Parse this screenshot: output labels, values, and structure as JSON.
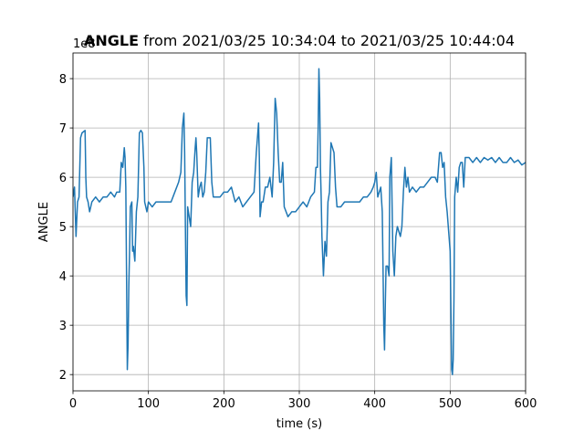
{
  "chart_data": {
    "type": "line",
    "title_parts": [
      "ANGLE",
      " from 2021/03/25 10:34:04 to 2021/03/25 10:44:04"
    ],
    "y_offset_label": "1e8",
    "xlabel": "time (s)",
    "ylabel": "ANGLE",
    "color": "#1f77b4",
    "grid": true,
    "xlim": [
      0,
      600
    ],
    "ylim": [
      1.67,
      8.52
    ],
    "xticks": [
      0,
      100,
      200,
      300,
      400,
      500,
      600
    ],
    "yticks": [
      2,
      3,
      4,
      5,
      6,
      7,
      8
    ],
    "x": [
      0,
      2,
      4,
      6,
      8,
      10,
      12,
      16,
      17,
      18,
      20,
      22,
      25,
      30,
      35,
      40,
      45,
      50,
      55,
      58,
      62,
      64,
      66,
      68,
      69,
      70,
      71,
      72,
      73,
      74,
      75,
      76,
      78,
      79,
      80,
      82,
      84,
      86,
      88,
      90,
      92,
      94,
      95,
      98,
      100,
      105,
      110,
      115,
      120,
      125,
      130,
      135,
      140,
      143,
      145,
      147,
      148,
      149,
      150,
      151,
      152,
      154,
      156,
      158,
      160,
      162,
      163,
      164,
      166,
      168,
      170,
      172,
      174,
      176,
      178,
      180,
      182,
      184,
      186,
      190,
      195,
      200,
      205,
      210,
      215,
      220,
      225,
      230,
      235,
      240,
      243,
      246,
      247,
      248,
      250,
      252,
      255,
      258,
      261,
      264,
      266,
      268,
      270,
      272,
      274,
      276,
      278,
      280,
      285,
      290,
      295,
      300,
      305,
      310,
      315,
      320,
      322,
      324,
      325,
      326,
      327,
      328,
      329,
      330,
      332,
      334,
      336,
      338,
      340,
      342,
      344,
      346,
      348,
      350,
      355,
      360,
      365,
      370,
      375,
      380,
      385,
      390,
      395,
      398,
      400,
      402,
      404,
      408,
      410,
      412,
      413,
      414,
      415,
      417,
      419,
      420,
      422,
      424,
      426,
      428,
      430,
      432,
      434,
      436,
      438,
      440,
      442,
      444,
      446,
      450,
      455,
      460,
      465,
      470,
      475,
      480,
      483,
      486,
      488,
      490,
      492,
      494,
      496,
      498,
      500,
      502,
      503,
      504,
      505,
      506,
      508,
      510,
      512,
      514,
      516,
      518,
      520,
      525,
      530,
      535,
      540,
      545,
      550,
      555,
      560,
      565,
      570,
      575,
      580,
      585,
      590,
      595,
      600
    ],
    "values": [
      5.6,
      5.8,
      4.8,
      5.5,
      5.6,
      6.8,
      6.9,
      6.95,
      6.0,
      5.6,
      5.5,
      5.3,
      5.5,
      5.6,
      5.5,
      5.6,
      5.6,
      5.7,
      5.6,
      5.7,
      5.7,
      6.3,
      6.2,
      6.6,
      6.4,
      5.8,
      4.0,
      2.1,
      2.6,
      3.8,
      4.5,
      5.4,
      5.5,
      4.5,
      4.6,
      4.3,
      5.3,
      5.6,
      6.9,
      6.95,
      6.9,
      6.2,
      5.5,
      5.3,
      5.5,
      5.4,
      5.5,
      5.5,
      5.5,
      5.5,
      5.5,
      5.7,
      5.9,
      6.1,
      7.0,
      7.3,
      6.5,
      5.0,
      3.6,
      3.4,
      5.4,
      5.2,
      5.0,
      5.9,
      6.1,
      6.6,
      6.8,
      6.5,
      5.6,
      5.8,
      5.9,
      5.6,
      5.7,
      6.1,
      6.8,
      6.8,
      6.8,
      5.9,
      5.6,
      5.6,
      5.6,
      5.7,
      5.7,
      5.8,
      5.5,
      5.6,
      5.4,
      5.5,
      5.6,
      5.7,
      6.5,
      7.1,
      6.4,
      5.2,
      5.5,
      5.5,
      5.8,
      5.8,
      6.0,
      5.6,
      6.3,
      7.6,
      7.3,
      6.5,
      5.9,
      5.9,
      6.3,
      5.4,
      5.2,
      5.3,
      5.3,
      5.4,
      5.5,
      5.4,
      5.6,
      5.7,
      6.2,
      6.2,
      7.0,
      8.2,
      7.6,
      6.2,
      5.6,
      4.8,
      4.0,
      4.7,
      4.4,
      5.5,
      5.7,
      6.7,
      6.6,
      6.5,
      5.8,
      5.4,
      5.4,
      5.5,
      5.5,
      5.5,
      5.5,
      5.5,
      5.6,
      5.6,
      5.7,
      5.8,
      5.9,
      6.1,
      5.6,
      5.8,
      5.3,
      3.0,
      2.5,
      3.4,
      4.2,
      4.2,
      4.0,
      6.0,
      6.4,
      4.5,
      4.0,
      4.8,
      5.0,
      4.9,
      4.8,
      5.0,
      5.7,
      6.2,
      5.8,
      6.0,
      5.7,
      5.8,
      5.7,
      5.8,
      5.8,
      5.9,
      6.0,
      6.0,
      5.9,
      6.5,
      6.5,
      6.2,
      6.3,
      5.6,
      5.3,
      4.9,
      4.5,
      2.1,
      2.0,
      2.3,
      3.5,
      5.6,
      6.0,
      5.7,
      6.2,
      6.3,
      6.3,
      5.8,
      6.4,
      6.4,
      6.3,
      6.4,
      6.3,
      6.4,
      6.35,
      6.4,
      6.3,
      6.4,
      6.3,
      6.3,
      6.4,
      6.3,
      6.35,
      6.25,
      6.3
    ]
  }
}
